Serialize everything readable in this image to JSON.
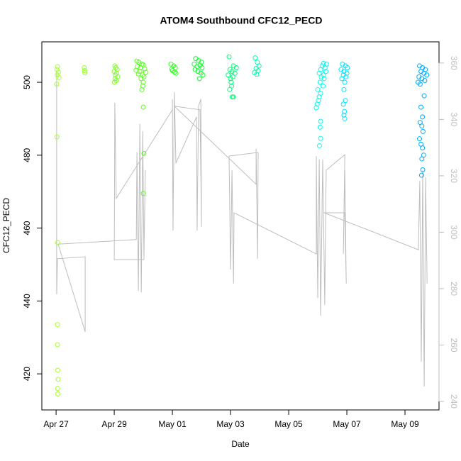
{
  "chart_data": {
    "type": "scatter",
    "title": "ATOM4 Southbound CFC12_PECD",
    "xlabel": "Date",
    "ylabel": "CFC12_PECD",
    "xlim": [
      -0.49,
      13.17
    ],
    "ylim": [
      410.1,
      511.1
    ],
    "y2lim": [
      237,
      367.5
    ],
    "xticks": [
      {
        "value": 0,
        "label": "Apr 27"
      },
      {
        "value": 2,
        "label": "Apr 29"
      },
      {
        "value": 4,
        "label": "May 01"
      },
      {
        "value": 6,
        "label": "May 03"
      },
      {
        "value": 8,
        "label": "May 05"
      },
      {
        "value": 10,
        "label": "May 07"
      },
      {
        "value": 12,
        "label": "May 09"
      }
    ],
    "yticks": [
      420,
      440,
      460,
      480,
      500
    ],
    "y2ticks": [
      240,
      260,
      280,
      300,
      320,
      340,
      360
    ],
    "y2color": "#bebebe",
    "series": [
      {
        "color": "#a6ff33",
        "x": [
          0.05,
          0.03,
          0.08,
          0.04,
          0.1,
          0.02,
          0.03,
          0.06,
          0.05,
          0.05,
          0.06,
          0.07,
          0.05,
          0.06
        ],
        "values": [
          504.3,
          503.5,
          502.8,
          502,
          501.3,
          499.5,
          485,
          456,
          433.5,
          428,
          421,
          418.5,
          416,
          414.5
        ]
      },
      {
        "color": "#96ff33",
        "x": [
          0.97,
          0.98,
          0.99
        ],
        "values": [
          504,
          503.2,
          502.6
        ]
      },
      {
        "color": "#80ff2a",
        "x": [
          2.02,
          2.05,
          2.1,
          2.0,
          2.08,
          2.04,
          2.12,
          2.03,
          2.07,
          2.01
        ],
        "values": [
          504.5,
          504,
          503.5,
          503,
          502.5,
          502,
          501.5,
          501,
          500.5,
          500
        ]
      },
      {
        "color": "#5cff22",
        "x": [
          2.78,
          2.85,
          2.95,
          3.0,
          2.8,
          2.9,
          3.05,
          2.75,
          2.88,
          3.08,
          2.83,
          2.97,
          3.02,
          2.92,
          3.0,
          2.98,
          2.95,
          3.0,
          3.02,
          3.0
        ],
        "values": [
          505.8,
          505.5,
          505,
          504.8,
          504.3,
          504,
          503.7,
          503.3,
          503,
          502.7,
          502.3,
          502,
          501.5,
          501,
          500,
          499,
          498,
          493.2,
          480.5,
          469.5
        ]
      },
      {
        "color": "#33ff22",
        "x": [
          3.95,
          4.05,
          4.1,
          3.98,
          4.0,
          4.08,
          4.12
        ],
        "values": [
          505,
          504.5,
          504,
          503.6,
          503.2,
          502.8,
          502.5
        ]
      },
      {
        "color": "#11ff33",
        "x": [
          4.8,
          4.9,
          5.0,
          4.75,
          4.95,
          4.85,
          5.02,
          4.78,
          4.88,
          4.98,
          5.05,
          4.93
        ],
        "values": [
          506.5,
          506,
          505.5,
          505,
          504.7,
          504.3,
          504,
          503.5,
          503,
          502.5,
          502,
          501
        ]
      },
      {
        "color": "#00ff77",
        "x": [
          5.95,
          6.1,
          6.2,
          5.98,
          6.05,
          6.15,
          5.92,
          6.08,
          6.0,
          6.02,
          6.04,
          5.97,
          6.06,
          6.1
        ],
        "values": [
          507,
          504.5,
          504,
          503.5,
          503,
          502.5,
          502,
          501.5,
          501,
          500,
          499,
          498,
          496,
          496
        ]
      },
      {
        "color": "#00ffaa",
        "x": [
          6.85,
          6.92,
          6.98,
          6.88,
          6.95,
          6.82,
          6.9
        ],
        "values": [
          506.7,
          505.5,
          504.5,
          503.8,
          503.2,
          502.7,
          502.2
        ]
      },
      {
        "color": "#00ffee",
        "x": [
          9.2,
          9.3,
          9.15,
          9.25,
          9.1,
          9.28,
          9.05,
          9.2,
          9.12,
          9.22,
          9.08,
          9.18,
          9.0,
          9.1,
          9.05,
          9.02,
          8.98,
          8.95,
          9.1,
          9.08,
          9.1,
          9.06
        ],
        "values": [
          505.2,
          505,
          504.5,
          504,
          503.5,
          503,
          502.5,
          502,
          501.5,
          501,
          500,
          499,
          498,
          497,
          496,
          495,
          494,
          493,
          489.3,
          487.7,
          484.6,
          482.6
        ]
      },
      {
        "color": "#00e5ff",
        "x": [
          9.85,
          9.95,
          10.02,
          9.8,
          9.9,
          10.0,
          9.88,
          9.97,
          9.83,
          9.93,
          9.9,
          9.95,
          9.88,
          9.92,
          9.9,
          9.93
        ],
        "values": [
          505,
          504.5,
          504,
          503.5,
          503,
          502.5,
          502,
          501.5,
          501,
          500,
          498,
          495,
          494,
          492,
          491,
          490
        ]
      },
      {
        "color": "#00aaff",
        "x": [
          12.5,
          12.6,
          12.7,
          12.55,
          12.65,
          12.75,
          12.48,
          12.58,
          12.68,
          12.45,
          12.52,
          12.66,
          12.55,
          12.6,
          12.52,
          12.58,
          12.62,
          12.5,
          12.55,
          12.6,
          12.64,
          12.58,
          12.61,
          12.57
        ],
        "values": [
          504.5,
          504,
          503.5,
          503,
          502.5,
          502,
          501.5,
          501,
          500.5,
          500,
          499.5,
          496.3,
          493.2,
          490.5,
          489,
          488,
          486.5,
          484.5,
          483,
          482,
          480,
          479,
          476,
          474.5
        ]
      },
      {
        "type": "line",
        "axis": "y2",
        "color": "#bebebe",
        "x": [
          0.02,
          0.02,
          0.05,
          1.0,
          1.0,
          0.07,
          2.76,
          2.78,
          2.83,
          2.88,
          2.93,
          2.98,
          3.02,
          3.07,
          3.02,
          2.0,
          2.02,
          2.07,
          4.0,
          4.0,
          4.02,
          4.07,
          4.12,
          4.83,
          4.85,
          4.9,
          4.98,
          5.0,
          4.95,
          4.07,
          6.88,
          6.88,
          6.93,
          6.95,
          5.95,
          6.0,
          6.05,
          6.1,
          6.12,
          8.95,
          8.95,
          9.0,
          9.05,
          9.1,
          9.17,
          9.24,
          9.29,
          9.93,
          9.88,
          9.93,
          9.98,
          9.93,
          9.22,
          12.46,
          12.51,
          12.56,
          12.61,
          12.66,
          12.71,
          12.76
        ],
        "values": [
          357.2,
          278.0,
          290.6,
          291.3,
          264.7,
          295.8,
          297.4,
          328.3,
          279.2,
          338.4,
          278.7,
          335.8,
          291.8,
          322.0,
          290.3,
          290.3,
          345.9,
          312.0,
          343.4,
          347.2,
          300.6,
          349.7,
          324.5,
          340.9,
          300.6,
          344.7,
          347.2,
          301.9,
          343.4,
          344.7,
          317.0,
          329.6,
          290.6,
          328.3,
          327.0,
          286.8,
          322.0,
          281.8,
          306.9,
          292.3,
          327.0,
          276.7,
          325.8,
          270.4,
          325.8,
          274.2,
          322.0,
          327.5,
          292.3,
          322.0,
          281.8,
          306.9,
          306.9,
          293.8,
          318.2,
          254.1,
          322.0,
          245.3,
          319.5,
          281.8
        ]
      }
    ]
  }
}
